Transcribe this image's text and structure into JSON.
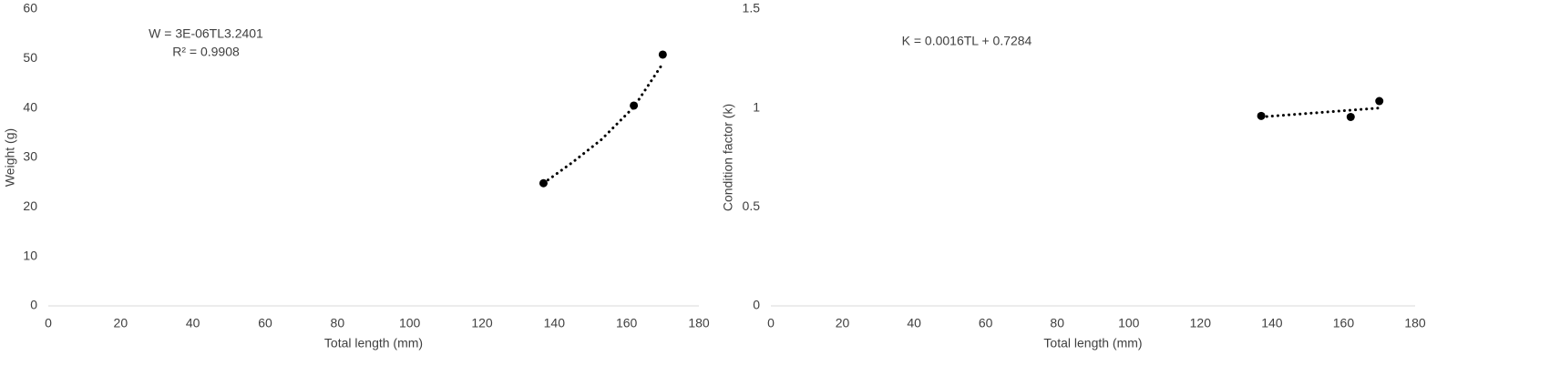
{
  "chart_data": [
    {
      "type": "scatter",
      "x_label": "Total length (mm)",
      "y_label": "Weight (g)",
      "annotations": [
        "W = 3E-06TL3.2401",
        "R² = 0.9908"
      ],
      "x": [
        137,
        162,
        170
      ],
      "values": [
        24.8,
        40.5,
        50.8
      ],
      "color": "#000000",
      "trendline": {
        "x": [
          137,
          145,
          153,
          162,
          170
        ],
        "values": [
          24.8,
          29,
          33.6,
          40.2,
          49
        ],
        "style": "dotted"
      },
      "xlim": [
        0,
        180
      ],
      "xticks": [
        0,
        20,
        40,
        60,
        80,
        100,
        120,
        140,
        160,
        180
      ],
      "ylim": [
        0,
        60
      ],
      "yticks": [
        0,
        10,
        20,
        30,
        40,
        50,
        60
      ],
      "grid": false
    },
    {
      "type": "scatter",
      "x_label": "Total length (mm)",
      "y_label": "Condition factor (k)",
      "annotations": [
        "K = 0.0016TL + 0.7284"
      ],
      "x": [
        137,
        162,
        170
      ],
      "values": [
        0.96,
        0.955,
        1.035
      ],
      "color": "#000000",
      "trendline": {
        "x": [
          137,
          170
        ],
        "values": [
          0.955,
          1.0
        ],
        "style": "dotted"
      },
      "xlim": [
        0,
        180
      ],
      "xticks": [
        0,
        20,
        40,
        60,
        80,
        100,
        120,
        140,
        160,
        180
      ],
      "ylim": [
        0,
        1.5
      ],
      "yticks": [
        0,
        0.5,
        1,
        1.5
      ],
      "grid": false
    }
  ]
}
